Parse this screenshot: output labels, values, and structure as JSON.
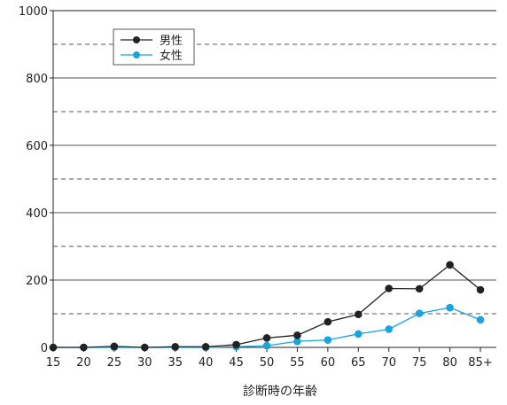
{
  "chart_data": {
    "type": "line",
    "title": "",
    "xlabel": "診断時の年齢",
    "ylabel": "",
    "categories": [
      "15",
      "20",
      "25",
      "30",
      "35",
      "40",
      "45",
      "50",
      "55",
      "60",
      "65",
      "70",
      "75",
      "80",
      "85+"
    ],
    "ylim": [
      0,
      1000
    ],
    "y_ticks": [
      0,
      200,
      400,
      600,
      800,
      1000
    ],
    "gridlines": "dashed-horizontal",
    "legend": "top-left",
    "series": [
      {
        "name": "男性",
        "color": "#222222",
        "values": [
          0,
          0,
          3,
          0,
          2,
          2,
          8,
          28,
          36,
          76,
          98,
          175,
          174,
          245,
          171
        ]
      },
      {
        "name": "女性",
        "color": "#1aa3dc",
        "values": [
          0,
          0,
          0,
          0,
          0,
          0,
          2,
          5,
          18,
          22,
          40,
          54,
          101,
          118,
          82
        ]
      }
    ]
  }
}
